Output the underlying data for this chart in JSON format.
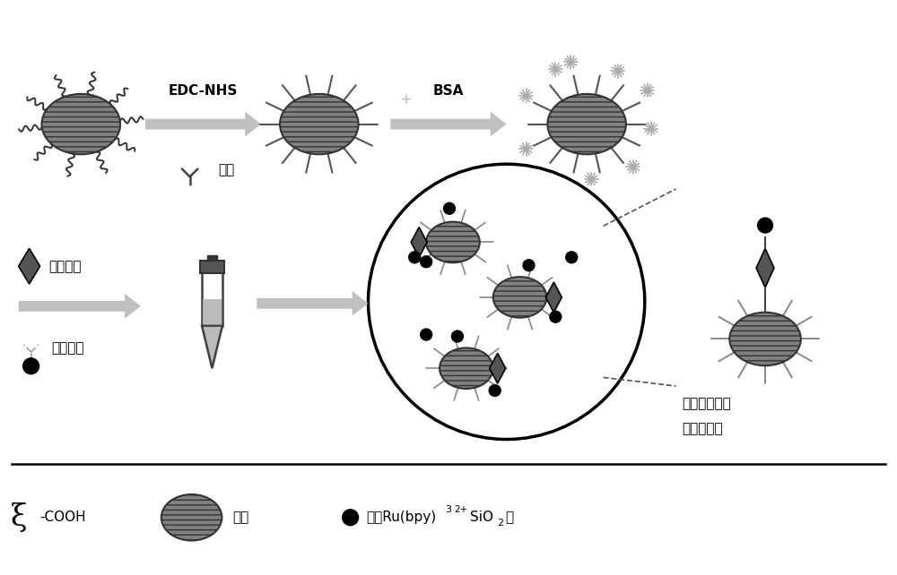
{
  "bg_color": "#ffffff",
  "bead_color": "#808080",
  "bead_edge": "#333333",
  "dark_gray": "#404040",
  "light_gray": "#bbbbbb",
  "arrow_color": "#c0c0c0",
  "black": "#000000",
  "label_edcnhs": "EDC-NHS",
  "label_yikang": "一抗",
  "label_bsa": "BSA",
  "label_protein": "待测蛋白",
  "label_ruekang": "钒标二抗",
  "legend_cooh": "-COOH",
  "legend_bead": "微珠",
  "legend_ru": "负载Ru(bpy)",
  "legend_ru2": "SiO",
  "legend_complex1": "单个免疫复合",
  "legend_complex2": "物修饰微珠"
}
